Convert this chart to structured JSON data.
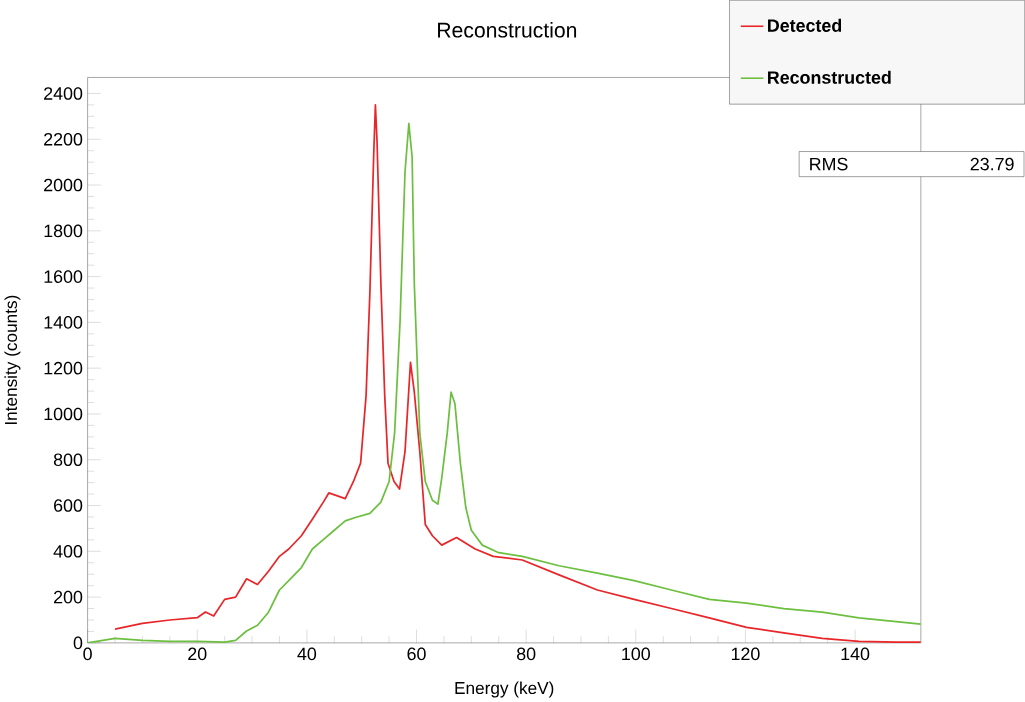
{
  "chart_data": {
    "type": "line",
    "title": "Reconstruction",
    "xlabel": "Energy (keV)",
    "ylabel": "Intensity (counts)",
    "xlim": [
      0,
      152
    ],
    "ylim": [
      0,
      2470
    ],
    "xticks": [
      0,
      20,
      40,
      60,
      80,
      100,
      120,
      140
    ],
    "yticks": [
      0,
      200,
      400,
      600,
      800,
      1000,
      1200,
      1400,
      1600,
      1800,
      2000,
      2200,
      2400
    ],
    "legend": "top right",
    "annotations": [
      "RMS",
      "23.79"
    ],
    "series": [
      {
        "name": "Detected",
        "color": "#e8262a",
        "x": [
          5,
          10,
          15,
          20,
          21.5,
          23,
          25,
          27,
          29,
          31,
          33,
          35,
          36.7,
          39,
          41,
          43,
          44,
          47,
          48.5,
          49.8,
          50.8,
          51.5,
          52.2,
          52.5,
          52.8,
          53.5,
          54.2,
          54.8,
          55.9,
          56.9,
          57.9,
          58.9,
          59.6,
          60.6,
          61.6,
          62.9,
          64.6,
          67.3,
          70.7,
          74,
          79.3,
          86,
          93,
          99.7,
          106.5,
          113.4,
          120.2,
          127,
          134,
          140.7,
          147.5,
          152
        ],
        "values": [
          60,
          85,
          100,
          110,
          135,
          117,
          190,
          200,
          280,
          255,
          313,
          378,
          410,
          468,
          540,
          615,
          655,
          630,
          705,
          785,
          1080,
          1535,
          2140,
          2350,
          2190,
          1570,
          1080,
          785,
          705,
          672,
          835,
          1225,
          1095,
          835,
          517,
          468,
          427,
          460,
          410,
          378,
          362,
          297,
          231,
          190,
          150,
          109,
          68,
          44,
          20,
          7,
          3,
          3
        ]
      },
      {
        "name": "Reconstructed",
        "color": "#6cbf3f",
        "x": [
          0,
          5,
          10,
          15,
          20,
          25,
          27,
          29,
          31,
          33,
          35,
          37,
          39,
          41,
          43,
          45,
          47,
          49,
          51.5,
          53.5,
          55,
          56,
          57,
          57.9,
          58.6,
          59.2,
          59.6,
          60.6,
          61.6,
          62.9,
          63.9,
          64.6,
          65.6,
          66.3,
          67,
          68,
          69,
          70,
          72,
          75,
          79.3,
          86,
          93,
          99.7,
          106.5,
          113.4,
          120.2,
          127,
          134,
          140.7,
          147.5,
          152
        ],
        "values": [
          0,
          20,
          11,
          7,
          7,
          3,
          11,
          52,
          77,
          134,
          231,
          280,
          329,
          410,
          451,
          492,
          533,
          549,
          566,
          615,
          705,
          916,
          1405,
          2057,
          2269,
          2122,
          1568,
          916,
          705,
          623,
          606,
          720,
          916,
          1095,
          1046,
          785,
          590,
          492,
          427,
          394,
          378,
          337,
          305,
          272,
          231,
          190,
          174,
          150,
          134,
          109,
          93,
          82
        ]
      }
    ]
  }
}
